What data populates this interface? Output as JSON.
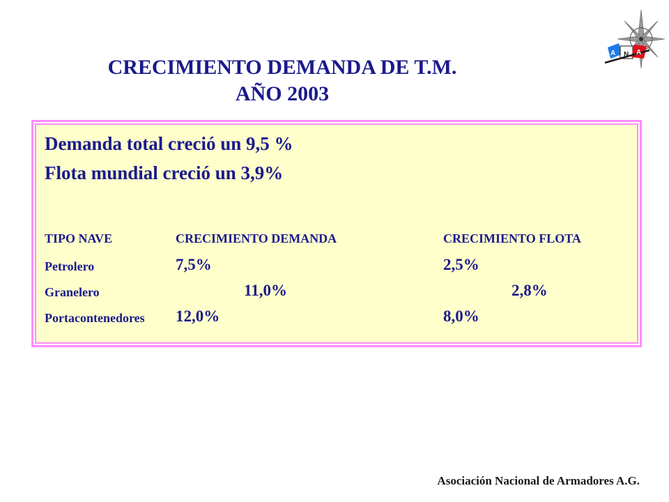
{
  "title": {
    "line1": "CRECIMIENTO DEMANDA DE T.M.",
    "line2": "AÑO 2003"
  },
  "logo": {
    "letters": [
      "A",
      "N",
      "A"
    ],
    "colors": {
      "blue": "#1e7be8",
      "red": "#e0101a",
      "dark": "#1a1a1a"
    }
  },
  "summary": {
    "demand": "Demanda total creció un 9,5 %",
    "fleet": "Flota mundial creció  un 3,9%"
  },
  "table": {
    "headers": [
      "TIPO NAVE",
      "CRECIMIENTO DEMANDA",
      "CRECIMIENTO FLOTA"
    ],
    "rows": [
      {
        "tipo": "Petrolero",
        "demanda": "7,5%",
        "flota": "2,5%"
      },
      {
        "tipo": "Granelero",
        "demanda": "11,0%",
        "flota": "2,8%"
      },
      {
        "tipo": "Portacontenedores",
        "demanda": "12,0%",
        "flota": "8,0%"
      }
    ]
  },
  "footer": "Asociación Nacional de Armadores A.G.",
  "colors": {
    "text": "#1a1a8c",
    "panel_bg": "#ffffcc",
    "panel_border": "#ff8cff"
  }
}
